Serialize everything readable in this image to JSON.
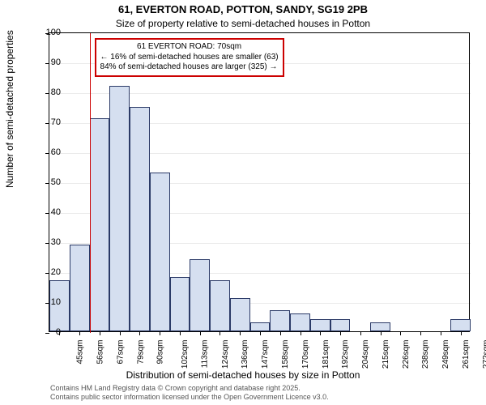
{
  "chart": {
    "type": "histogram",
    "title": "61, EVERTON ROAD, POTTON, SANDY, SG19 2PB",
    "subtitle": "Size of property relative to semi-detached houses in Potton",
    "ylabel": "Number of semi-detached properties",
    "xlabel": "Distribution of semi-detached houses by size in Potton",
    "background_color": "#ffffff",
    "bar_fill": "#d5dff0",
    "bar_stroke": "#2b3a67",
    "marker_color": "#cc0000",
    "ylim": [
      0,
      100
    ],
    "ytick_step": 10,
    "yticks": [
      0,
      10,
      20,
      30,
      40,
      50,
      60,
      70,
      80,
      90,
      100
    ],
    "xtick_labels": [
      "45sqm",
      "56sqm",
      "67sqm",
      "79sqm",
      "90sqm",
      "102sqm",
      "113sqm",
      "124sqm",
      "136sqm",
      "147sqm",
      "158sqm",
      "170sqm",
      "181sqm",
      "192sqm",
      "204sqm",
      "215sqm",
      "226sqm",
      "238sqm",
      "249sqm",
      "261sqm",
      "272sqm"
    ],
    "bars": [
      17,
      29,
      71,
      82,
      75,
      53,
      18,
      24,
      17,
      11,
      3,
      7,
      6,
      4,
      4,
      0,
      3,
      0,
      0,
      0,
      4
    ],
    "marker_bin_index": 2,
    "annotation": {
      "title": "61 EVERTON ROAD: 70sqm",
      "line1": "← 16% of semi-detached houses are smaller (63)",
      "line2": "84% of semi-detached houses are larger (325) →"
    },
    "footnote1": "Contains HM Land Registry data © Crown copyright and database right 2025.",
    "footnote2": "Contains public sector information licensed under the Open Government Licence v3.0."
  }
}
